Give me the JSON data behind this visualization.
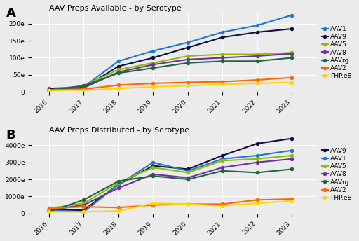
{
  "years": [
    2016,
    2017,
    2018,
    2019,
    2020,
    2021,
    2022,
    2023
  ],
  "panel_A": {
    "title": "AAV Preps Available - by Serotype",
    "ylim": [
      0,
      230
    ],
    "yticks": [
      0,
      50,
      100,
      150,
      200
    ],
    "ytick_labels": [
      "0",
      "50e",
      "100e",
      "150e",
      "200e"
    ],
    "series": {
      "AAV1": [
        10,
        15,
        90,
        120,
        145,
        175,
        195,
        225
      ],
      "AAV9": [
        8,
        12,
        75,
        100,
        130,
        160,
        175,
        185
      ],
      "AAV5": [
        5,
        18,
        65,
        85,
        105,
        110,
        110,
        115
      ],
      "AAV8": [
        5,
        12,
        58,
        80,
        95,
        100,
        105,
        112
      ],
      "AAVrg": [
        5,
        18,
        55,
        70,
        85,
        90,
        90,
        100
      ],
      "AAV2": [
        5,
        8,
        20,
        25,
        28,
        30,
        35,
        42
      ],
      "PHP.eB": [
        5,
        5,
        10,
        15,
        18,
        22,
        25,
        28
      ]
    },
    "colors": {
      "AAV1": "#1f77d0",
      "AAV9": "#101040",
      "AAV5": "#8fbc00",
      "AAV8": "#7030a0",
      "AAVrg": "#1a6640",
      "AAV2": "#ff6600",
      "PHP.eB": "#ffd700"
    }
  },
  "panel_B": {
    "title": "AAV Preps Distributed - by Serotype",
    "ylim": [
      0,
      4600
    ],
    "yticks": [
      0,
      1000,
      2000,
      3000,
      4000
    ],
    "ytick_labels": [
      "0",
      "1000e",
      "2000e",
      "3000e",
      "4000e"
    ],
    "series": {
      "AAV9": [
        200,
        200,
        1700,
        2800,
        2600,
        3400,
        4100,
        4400
      ],
      "AAV1": [
        200,
        100,
        1700,
        3000,
        2500,
        3200,
        3400,
        3700
      ],
      "AAV5": [
        300,
        600,
        1800,
        2700,
        2400,
        3100,
        3200,
        3400
      ],
      "AAV8": [
        200,
        500,
        1500,
        2300,
        2100,
        2700,
        3000,
        3200
      ],
      "AAVrg": [
        100,
        800,
        1900,
        2200,
        2000,
        2500,
        2400,
        2600
      ],
      "AAV2": [
        300,
        400,
        350,
        500,
        550,
        550,
        800,
        850
      ],
      "PHP.eB": [
        100,
        100,
        150,
        600,
        550,
        450,
        600,
        750
      ]
    },
    "colors": {
      "AAV9": "#101040",
      "AAV1": "#1f77d0",
      "AAV5": "#8fbc00",
      "AAV8": "#7030a0",
      "AAVrg": "#1a6640",
      "AAV2": "#ff6600",
      "PHP.eB": "#ffd700"
    }
  },
  "background_color": "#ebebeb",
  "grid_color": "#ffffff",
  "label_fontsize": 6.5,
  "title_fontsize": 8,
  "legend_fontsize": 6.5,
  "marker": "o",
  "marker_size": 3,
  "linewidth": 1.5
}
